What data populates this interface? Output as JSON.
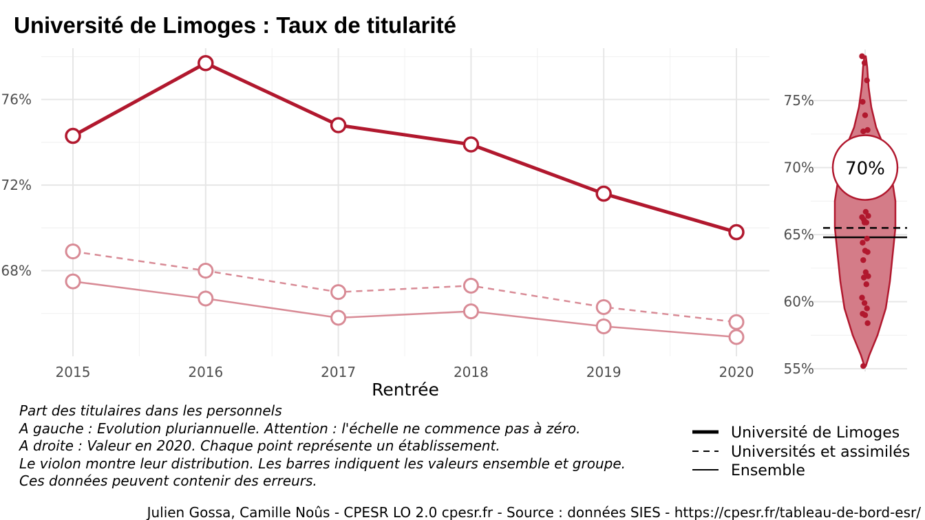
{
  "chart_data": [
    {
      "type": "line",
      "title": "Université de Limoges  :  Taux de titularité",
      "xlabel": "Rentrée",
      "ylabel": "",
      "x": [
        2015,
        2016,
        2017,
        2018,
        2019,
        2020
      ],
      "x_tick_labels": [
        "2015",
        "2016",
        "2017",
        "2018",
        "2019",
        "2020"
      ],
      "y_tick_labels": [
        "68%",
        "72%",
        "76%"
      ],
      "y_ticks": [
        68,
        72,
        76
      ],
      "ylim": [
        64.0,
        78.4
      ],
      "grid": true,
      "series": [
        {
          "name": "Université de Limoges",
          "values": [
            74.3,
            77.7,
            74.8,
            73.9,
            71.6,
            69.8
          ],
          "style": "solid-thick",
          "color": "#b1182e"
        },
        {
          "name": "Universités et assimilés",
          "values": [
            68.9,
            68.0,
            67.0,
            67.3,
            66.3,
            65.6
          ],
          "style": "dashed",
          "color": "#d88a95"
        },
        {
          "name": "Ensemble",
          "values": [
            67.5,
            66.7,
            65.8,
            66.1,
            65.4,
            64.9
          ],
          "style": "solid-thin",
          "color": "#d88a95"
        }
      ]
    },
    {
      "type": "violin",
      "ylim": [
        54.8,
        78.8
      ],
      "y_ticks": [
        55,
        60,
        65,
        70,
        75
      ],
      "y_tick_labels": [
        "55%",
        "60%",
        "65%",
        "70%",
        "75%"
      ],
      "highlight_value": 70,
      "highlight_label": "70%",
      "reference_lines": [
        {
          "name": "Universités et assimilés",
          "value": 65.5,
          "style": "dashed"
        },
        {
          "name": "Ensemble",
          "value": 64.8,
          "style": "solid"
        }
      ],
      "points": [
        78.3,
        77.8,
        76.5,
        74.9,
        73.9,
        72.8,
        72.7,
        66.7,
        66.4,
        66.1,
        65.9,
        66.3,
        65.9,
        64.7,
        64.4,
        63.8,
        63.7,
        63.1,
        62.2,
        61.9,
        61.8,
        61.3,
        60.3,
        59.9,
        59.5,
        59.1,
        59.0,
        58.4,
        55.2
      ],
      "color": "#b1182e",
      "fill": "#d47c88"
    }
  ],
  "notes": [
    "Part des titulaires dans les personnels",
    "A gauche : Evolution pluriannuelle. Attention : l'échelle ne commence pas à zéro.",
    "A droite : Valeur en 2020. Chaque point représente un établissement.",
    "Le violon montre leur distribution. Les barres indiquent les valeurs ensemble et groupe.",
    "Ces données peuvent contenir des erreurs."
  ],
  "legend": {
    "items": [
      "Université de Limoges",
      "Universités et assimilés",
      "Ensemble"
    ]
  },
  "caption": "Julien Gossa, Camille Noûs - CPESR LO 2.0 cpesr.fr - Source : données SIES - https://cpesr.fr/tableau-de-bord-esr/"
}
